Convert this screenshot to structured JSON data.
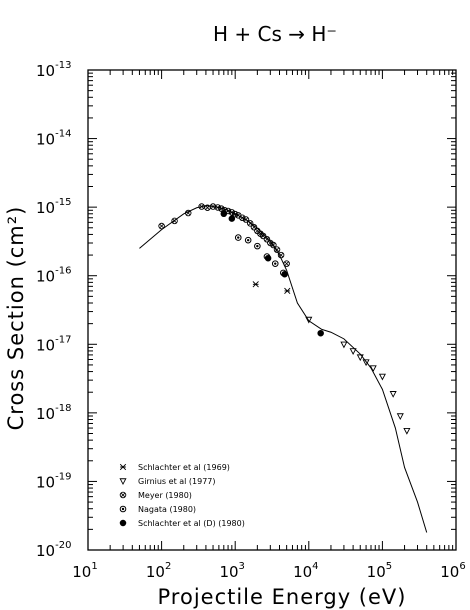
{
  "chart_data": {
    "type": "scatter",
    "title": "H + Cs → H⁻",
    "xlabel": "Projectile Energy (eV)",
    "ylabel": "Cross Section (cm²)",
    "x_scale": "log",
    "y_scale": "log",
    "xlim": [
      10,
      1000000
    ],
    "ylim": [
      1e-20,
      1e-13
    ],
    "x_ticks": [
      {
        "base": "10",
        "exp": "1",
        "value": 10
      },
      {
        "base": "10",
        "exp": "2",
        "value": 100
      },
      {
        "base": "10",
        "exp": "3",
        "value": 1000
      },
      {
        "base": "10",
        "exp": "4",
        "value": 10000
      },
      {
        "base": "10",
        "exp": "5",
        "value": 100000
      },
      {
        "base": "10",
        "exp": "6",
        "value": 1000000
      }
    ],
    "y_ticks": [
      {
        "base": "10",
        "exp": "-20",
        "value": 1e-20
      },
      {
        "base": "10",
        "exp": "-19",
        "value": 1e-19
      },
      {
        "base": "10",
        "exp": "-18",
        "value": 1e-18
      },
      {
        "base": "10",
        "exp": "-17",
        "value": 1e-17
      },
      {
        "base": "10",
        "exp": "-16",
        "value": 1e-16
      },
      {
        "base": "10",
        "exp": "-15",
        "value": 1e-15
      },
      {
        "base": "10",
        "exp": "-14",
        "value": 1e-14
      },
      {
        "base": "10",
        "exp": "-13",
        "value": 1e-13
      }
    ],
    "grid": false,
    "legend_position": "bottom-left",
    "fit_curve": {
      "x": [
        50,
        100,
        200,
        300,
        400,
        500,
        700,
        1000,
        1500,
        2000,
        3000,
        4000,
        5000,
        7000,
        10000,
        15000,
        20000,
        30000,
        50000,
        70000,
        100000,
        150000,
        200000,
        300000,
        400000
      ],
      "y": [
        2.5e-16,
        4.7e-16,
        8e-16,
        9.8e-16,
        1.05e-15,
        1.02e-15,
        9.5e-16,
        8e-16,
        6.3e-16,
        4.9e-16,
        3.2e-16,
        2e-16,
        1.2e-16,
        4e-17,
        2.2e-17,
        1.65e-17,
        1.5e-17,
        1.2e-17,
        7.2e-18,
        4.5e-18,
        2.2e-18,
        6e-19,
        1.6e-19,
        5e-20,
        1.8e-20
      ]
    },
    "series": [
      {
        "name": "Schlachter et al (1969)",
        "marker": "asterisk",
        "x": [
          1900,
          5100
        ],
        "y": [
          7.5e-17,
          6e-17
        ]
      },
      {
        "name": "Girnius et al (1977)",
        "marker": "triangle-down",
        "x": [
          10000,
          30000,
          40000,
          50000,
          60000,
          75000,
          100000,
          140000,
          175000,
          215000
        ],
        "y": [
          2.3e-17,
          1e-17,
          8e-18,
          6.5e-18,
          5.5e-18,
          4.5e-18,
          3.4e-18,
          1.9e-18,
          9e-19,
          5.5e-19
        ]
      },
      {
        "name": "Meyer (1980)",
        "marker": "circle-cross",
        "x": [
          100,
          150,
          230,
          350,
          420,
          500,
          580,
          650,
          720,
          800,
          900,
          1000,
          1100,
          1250,
          1400,
          1600,
          1800,
          2000,
          2200,
          2400,
          2700,
          3000,
          3300,
          3700,
          4200,
          5000
        ],
        "y": [
          5.3e-16,
          6.3e-16,
          8.2e-16,
          1.02e-15,
          9.8e-16,
          1.02e-15,
          9.9e-16,
          9.5e-16,
          9e-16,
          8.8e-16,
          8.4e-16,
          7.9e-16,
          7.6e-16,
          7e-16,
          6.6e-16,
          5.8e-16,
          5.1e-16,
          4.5e-16,
          4.1e-16,
          3.8e-16,
          3.4e-16,
          3e-16,
          2.8e-16,
          2.4e-16,
          2e-16,
          1.5e-16
        ]
      },
      {
        "name": "Nagata (1980)",
        "marker": "circle-dot",
        "x": [
          1100,
          1500,
          2000,
          2700,
          3500,
          4500
        ],
        "y": [
          3.6e-16,
          3.3e-16,
          2.7e-16,
          1.9e-16,
          1.5e-16,
          1.1e-16
        ]
      },
      {
        "name": "Schlachter et al (D) (1980)",
        "marker": "circle-filled",
        "x": [
          700,
          900,
          2800,
          4700,
          14500
        ],
        "y": [
          8e-16,
          6.8e-16,
          1.8e-16,
          1.05e-16,
          1.45e-17
        ]
      }
    ]
  }
}
